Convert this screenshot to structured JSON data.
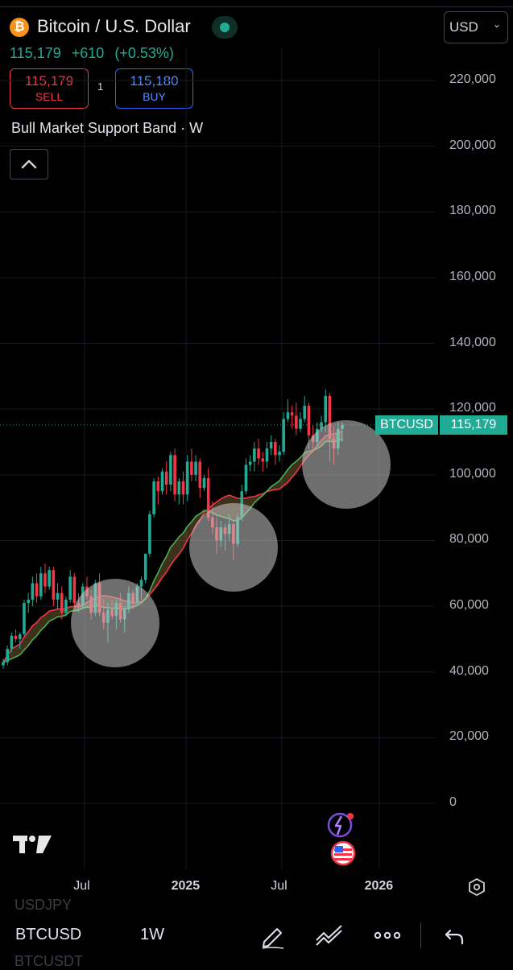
{
  "instrument": {
    "coin_glyph": "₿",
    "title": "Bitcoin / U.S. Dollar",
    "last": "115,179",
    "change": "+610",
    "change_pct": "(+0.53%)"
  },
  "trade": {
    "sell_price": "115,179",
    "sell_label": "SELL",
    "spread": "1",
    "buy_price": "115,180",
    "buy_label": "BUY"
  },
  "indicator": "Bull Market Support Band · W",
  "currency": {
    "value": "USD",
    "chevron": "⌄"
  },
  "y_axis_labels": [
    "220,000",
    "200,000",
    "180,000",
    "160,000",
    "140,000",
    "120,000",
    "100,000",
    "80,000",
    "60,000",
    "40,000",
    "20,000",
    "0"
  ],
  "x_axis_labels": [
    "Jul",
    "2025",
    "Jul",
    "2026"
  ],
  "price_tag": {
    "symbol": "BTCUSD",
    "price": "115,179"
  },
  "bottom": {
    "ghost_above": "USDJPY",
    "symbol": "BTCUSD",
    "timeframe": "1W",
    "ghost_below": "BTCUSDT"
  },
  "icons": [
    "bitcoin-icon",
    "live-status-icon",
    "chevron-up-icon",
    "chevron-down-icon",
    "ai-assistant-icon",
    "us-flag-icon",
    "tradingview-logo",
    "settings-hexagon-icon",
    "pencil-icon",
    "trend-lines-icon",
    "more-icon",
    "undo-icon"
  ],
  "colors": {
    "up": "#22ab94",
    "down": "#f23645",
    "buy": "#2962ff",
    "band_fast": "#4caf50",
    "band_slow": "#f23645",
    "band_fill": "#b28d4f"
  },
  "chart_data": {
    "type": "candlestick",
    "symbol": "BTCUSD",
    "timeframe": "1W",
    "ylim": [
      0,
      220000
    ],
    "x_ticks": [
      "Jul",
      "2025",
      "Jul",
      "2026"
    ],
    "last_price": 115179,
    "ohlc": [
      [
        42000,
        44000,
        41000,
        43000
      ],
      [
        43000,
        48000,
        42000,
        47000
      ],
      [
        47000,
        52000,
        46000,
        51000
      ],
      [
        51000,
        53000,
        49000,
        50000
      ],
      [
        50000,
        52000,
        47000,
        51500
      ],
      [
        51500,
        62000,
        51000,
        61000
      ],
      [
        61000,
        64000,
        58000,
        62000
      ],
      [
        62000,
        69000,
        60000,
        67000
      ],
      [
        67000,
        70000,
        61000,
        63000
      ],
      [
        63000,
        72000,
        62000,
        70000
      ],
      [
        70000,
        73000,
        64000,
        66000
      ],
      [
        66000,
        72000,
        65000,
        71000
      ],
      [
        71000,
        72000,
        60000,
        62000
      ],
      [
        62000,
        67000,
        59000,
        64000
      ],
      [
        64000,
        66000,
        56000,
        58000
      ],
      [
        58000,
        63000,
        57000,
        62000
      ],
      [
        62000,
        71000,
        61000,
        69000
      ],
      [
        69000,
        70000,
        60000,
        61000
      ],
      [
        61000,
        64000,
        58000,
        60000
      ],
      [
        60000,
        67000,
        59000,
        66000
      ],
      [
        66000,
        69000,
        62000,
        63000
      ],
      [
        63000,
        65000,
        56000,
        58000
      ],
      [
        58000,
        68000,
        57000,
        67000
      ],
      [
        67000,
        70000,
        57000,
        58000
      ],
      [
        58000,
        62000,
        53000,
        55000
      ],
      [
        55000,
        61000,
        49000,
        59000
      ],
      [
        59000,
        62000,
        56000,
        57000
      ],
      [
        57000,
        62000,
        53000,
        61000
      ],
      [
        61000,
        64000,
        55000,
        56000
      ],
      [
        56000,
        60000,
        52000,
        59000
      ],
      [
        59000,
        66000,
        58000,
        64000
      ],
      [
        64000,
        65000,
        59000,
        61000
      ],
      [
        61000,
        67000,
        60000,
        66000
      ],
      [
        66000,
        69000,
        62000,
        68000
      ],
      [
        68000,
        76000,
        67000,
        76000
      ],
      [
        76000,
        89000,
        75000,
        88000
      ],
      [
        88000,
        99000,
        87000,
        98000
      ],
      [
        98000,
        99500,
        91000,
        95000
      ],
      [
        95000,
        102000,
        94000,
        101000
      ],
      [
        101000,
        104000,
        94000,
        97000
      ],
      [
        97000,
        107000,
        95000,
        106000
      ],
      [
        106000,
        108000,
        92000,
        94000
      ],
      [
        94000,
        99000,
        91000,
        98000
      ],
      [
        98000,
        101000,
        91000,
        94000
      ],
      [
        94000,
        106000,
        92000,
        104000
      ],
      [
        104000,
        108000,
        98000,
        100000
      ],
      [
        100000,
        106000,
        98000,
        104000
      ],
      [
        104000,
        105000,
        93000,
        96000
      ],
      [
        96000,
        100000,
        95000,
        99000
      ],
      [
        99000,
        102000,
        86000,
        87000
      ],
      [
        87000,
        92000,
        82000,
        84000
      ],
      [
        84000,
        87000,
        76000,
        80000
      ],
      [
        80000,
        86000,
        78000,
        84000
      ],
      [
        84000,
        85000,
        77000,
        82000
      ],
      [
        82000,
        88000,
        80000,
        85000
      ],
      [
        85000,
        86000,
        74000,
        79000
      ],
      [
        79000,
        88000,
        78000,
        87000
      ],
      [
        87000,
        97000,
        86000,
        95000
      ],
      [
        95000,
        105000,
        94000,
        103000
      ],
      [
        103000,
        106000,
        101000,
        104000
      ],
      [
        104000,
        110000,
        101000,
        108000
      ],
      [
        108000,
        111000,
        103000,
        105000
      ],
      [
        105000,
        107000,
        101000,
        104000
      ],
      [
        104000,
        110000,
        102000,
        108000
      ],
      [
        108000,
        112000,
        106000,
        110000
      ],
      [
        110000,
        111000,
        103000,
        106000
      ],
      [
        106000,
        109000,
        104000,
        107000
      ],
      [
        107000,
        119000,
        106000,
        117000
      ],
      [
        117000,
        123000,
        116000,
        119000
      ],
      [
        119000,
        121000,
        114000,
        118000
      ],
      [
        118000,
        122000,
        112000,
        114000
      ],
      [
        114000,
        119000,
        113000,
        117000
      ],
      [
        117000,
        124000,
        116000,
        121000
      ],
      [
        121000,
        122000,
        108000,
        112000
      ],
      [
        112000,
        115000,
        107000,
        110000
      ],
      [
        110000,
        116000,
        109000,
        114000
      ],
      [
        114000,
        118000,
        113000,
        116000
      ],
      [
        116000,
        126000,
        113000,
        124000
      ],
      [
        124000,
        125000,
        104000,
        111000
      ],
      [
        111000,
        115000,
        103000,
        108000
      ],
      [
        108000,
        116000,
        106000,
        114000
      ],
      [
        114000,
        116000,
        110000,
        115179
      ]
    ]
  }
}
